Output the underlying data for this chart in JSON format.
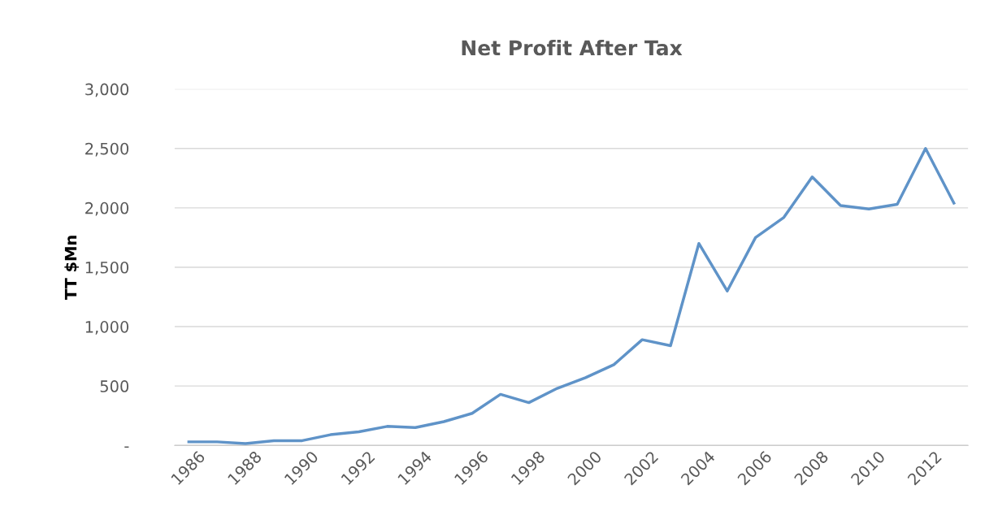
{
  "chart_data": {
    "type": "line",
    "title": "Net Profit After Tax",
    "ylabel": "TT $Mn",
    "categories": [
      "1986",
      null,
      "1988",
      null,
      "1990",
      null,
      "1992",
      null,
      "1994",
      null,
      "1996",
      null,
      "1998",
      null,
      "2000",
      null,
      "2002",
      null,
      "2004",
      null,
      "2006",
      null,
      "2008",
      null,
      "2010",
      null,
      "2012",
      null
    ],
    "series": [
      {
        "color": "#5f93c8",
        "values": [
          30,
          30,
          15,
          40,
          40,
          90,
          115,
          160,
          150,
          200,
          270,
          430,
          360,
          480,
          570,
          680,
          890,
          840,
          1700,
          1300,
          1750,
          1920,
          2260,
          2020,
          1990,
          2030,
          2500,
          2040
        ]
      }
    ],
    "ylim": [
      0,
      3000
    ],
    "yticks": [
      {
        "value": 0,
        "label": "-"
      },
      {
        "value": 500,
        "label": "500"
      },
      {
        "value": 1000,
        "label": "1,000"
      },
      {
        "value": 1500,
        "label": "1,500"
      },
      {
        "value": 2000,
        "label": "2,000"
      },
      {
        "value": 2500,
        "label": "2,500"
      },
      {
        "value": 3000,
        "label": "3,000"
      }
    ],
    "grid": "y",
    "marker": "none",
    "line_style": "solid",
    "legend": false
  }
}
